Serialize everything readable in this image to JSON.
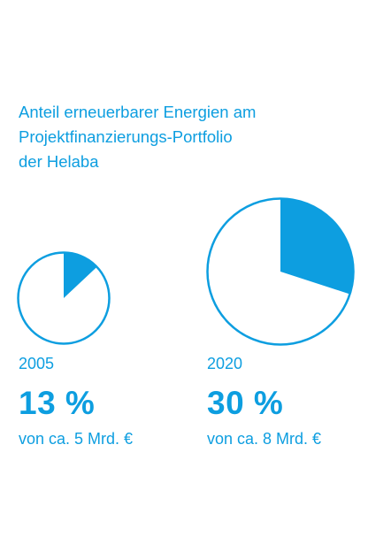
{
  "title_lines": [
    "Anteil erneuerbarer Energien am",
    "Projektfinanzierungs-Portfolio",
    "der Helaba"
  ],
  "colors": {
    "accent": "#0d9ee0",
    "background": "#ffffff"
  },
  "chart_data": [
    {
      "type": "pie",
      "year": "2005",
      "percent_label": "13 %",
      "amount_label": "von ca. 5 Mrd. €",
      "values": [
        13,
        87
      ],
      "portfolio_size_bn_eur": 5
    },
    {
      "type": "pie",
      "year": "2020",
      "percent_label": "30 %",
      "amount_label": "von ca. 8 Mrd. €",
      "values": [
        30,
        70
      ],
      "portfolio_size_bn_eur": 8
    }
  ]
}
